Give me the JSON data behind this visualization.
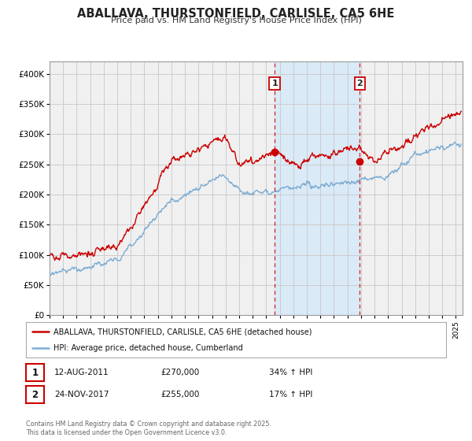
{
  "title": "ABALLAVA, THURSTONFIELD, CARLISLE, CA5 6HE",
  "subtitle": "Price paid vs. HM Land Registry's House Price Index (HPI)",
  "legend_label1": "ABALLAVA, THURSTONFIELD, CARLISLE, CA5 6HE (detached house)",
  "legend_label2": "HPI: Average price, detached house, Cumberland",
  "marker1_date": 2011.62,
  "marker1_price": 270000,
  "marker1_text_date": "12-AUG-2011",
  "marker1_text_price": "£270,000",
  "marker1_text_hpi": "34% ↑ HPI",
  "marker2_date": 2017.9,
  "marker2_price": 255000,
  "marker2_text_date": "24-NOV-2017",
  "marker2_text_price": "£255,000",
  "marker2_text_hpi": "17% ↑ HPI",
  "footer": "Contains HM Land Registry data © Crown copyright and database right 2025.\nThis data is licensed under the Open Government Licence v3.0.",
  "red_color": "#cc0000",
  "blue_color": "#7dadd4",
  "bg_color": "#ffffff",
  "plot_bg_color": "#f0f0f0",
  "grid_color": "#cccccc",
  "shade_color": "#daeaf7",
  "ylim": [
    0,
    420000
  ],
  "xlim_start": 1995.0,
  "xlim_end": 2025.5
}
